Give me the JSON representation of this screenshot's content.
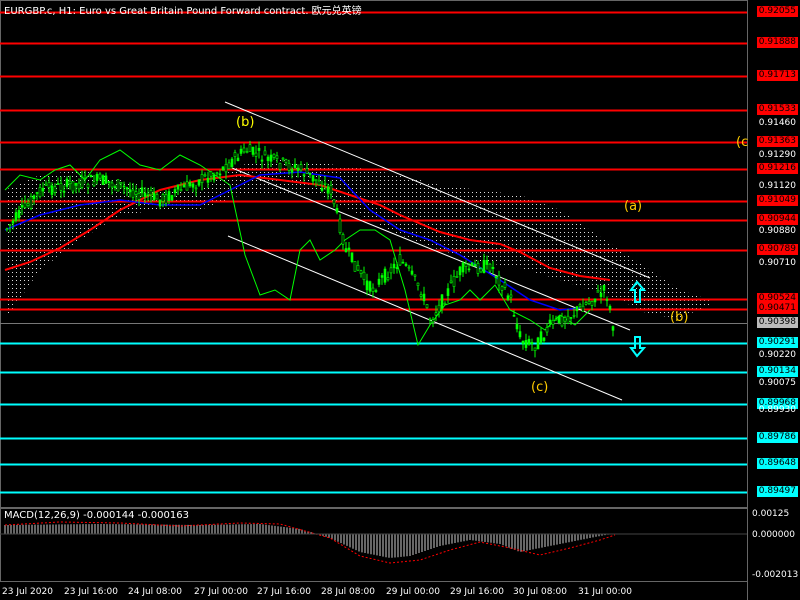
{
  "title": "EURGBP.c, H1:  Euro vs Great Britain Pound Forward contract. 欧元兑英镑",
  "macd_title": "MACD(12,26,9) -0.000144 -0.000163",
  "colors": {
    "background": "#000000",
    "candles": "#00ff00",
    "red_level": "#ff0000",
    "cyan_level": "#00ffff",
    "wave_label": "#ffff00",
    "channel": "#ffffff",
    "ma_red": "#ff0000",
    "ma_blue": "#0000ff"
  },
  "price_axis": {
    "ticks": [
      "0.92055",
      "0.91888",
      "0.91713",
      "0.91533",
      "0.91460",
      "0.91363",
      "0.91290",
      "0.91216",
      "0.91120",
      "0.91049",
      "0.90944",
      "0.90880",
      "0.90789",
      "0.90710",
      "0.90524",
      "0.90471",
      "0.90398",
      "0.90291",
      "0.90220",
      "0.90134",
      "0.90075",
      "0.89968",
      "0.89930",
      "0.89786",
      "0.89648",
      "0.89497"
    ]
  },
  "levels": {
    "red": [
      "0.92055",
      "0.91888",
      "0.91713",
      "0.91533",
      "0.91363",
      "0.91216",
      "0.91049",
      "0.90944",
      "0.90789",
      "0.90524",
      "0.90471"
    ],
    "cyan": [
      "0.90291",
      "0.90134",
      "0.89968",
      "0.89786",
      "0.89648",
      "0.89497"
    ],
    "current_price": "0.90398"
  },
  "wave_labels": [
    "(b)",
    "(a)",
    "(b)",
    "(c)",
    "(c"
  ],
  "time_axis": [
    "23 Jul 2020",
    "23 Jul 16:00",
    "24 Jul 08:00",
    "27 Jul 00:00",
    "27 Jul 16:00",
    "28 Jul 08:00",
    "29 Jul 00:00",
    "29 Jul 16:00",
    "30 Jul 08:00",
    "31 Jul 00:00"
  ],
  "macd_axis": [
    "0.00125",
    "0.000000",
    "-0.002013"
  ],
  "arrows": [
    {
      "name": "up-arrow-icon",
      "color": "#00ffff"
    },
    {
      "name": "down-arrow-icon",
      "color": "#00ffff"
    }
  ]
}
